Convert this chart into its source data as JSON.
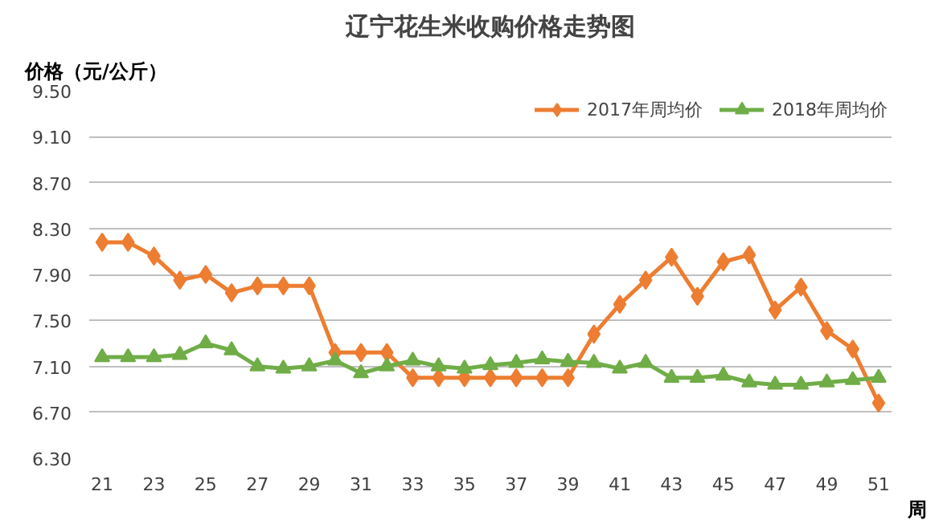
{
  "chart_data": {
    "type": "line",
    "title": "辽宁花生米收购价格走势图",
    "xlabel": "周",
    "ylabel": "价格（元/公斤）",
    "x": [
      21,
      22,
      23,
      24,
      25,
      26,
      27,
      28,
      29,
      30,
      31,
      32,
      33,
      34,
      35,
      36,
      37,
      38,
      39,
      40,
      41,
      42,
      43,
      44,
      45,
      46,
      47,
      48,
      49,
      50,
      51
    ],
    "series": [
      {
        "name": "2017年周均价",
        "color": "#ed7d31",
        "marker": "diamond",
        "values": [
          8.18,
          8.18,
          8.06,
          7.85,
          7.9,
          7.74,
          7.8,
          7.8,
          7.8,
          7.22,
          7.22,
          7.22,
          7.0,
          7.0,
          7.0,
          7.0,
          7.0,
          7.0,
          7.0,
          7.38,
          7.64,
          7.85,
          8.05,
          7.71,
          8.01,
          8.07,
          7.59,
          7.79,
          7.41,
          7.25,
          6.78
        ]
      },
      {
        "name": "2018年周均价",
        "color": "#70ad47",
        "marker": "triangle",
        "values": [
          7.18,
          7.18,
          7.18,
          7.2,
          7.3,
          7.24,
          7.1,
          7.08,
          7.1,
          7.15,
          7.04,
          7.1,
          7.15,
          7.1,
          7.08,
          7.11,
          7.13,
          7.16,
          7.14,
          7.13,
          7.08,
          7.13,
          7.0,
          7.0,
          7.02,
          6.96,
          6.94,
          6.94,
          6.96,
          6.98,
          7.0
        ]
      }
    ],
    "xlim": [
      20.5,
      51.5
    ],
    "xticks": [
      21,
      23,
      25,
      27,
      29,
      31,
      33,
      35,
      37,
      39,
      41,
      43,
      45,
      47,
      49,
      51
    ],
    "ylim": [
      6.3,
      9.5
    ],
    "yticks": [
      {
        "value": 6.3,
        "label": "6.30"
      },
      {
        "value": 6.7,
        "label": "6.70"
      },
      {
        "value": 7.1,
        "label": "7.10"
      },
      {
        "value": 7.5,
        "label": "7.50"
      },
      {
        "value": 7.9,
        "label": "7.90"
      },
      {
        "value": 8.3,
        "label": "8.30"
      },
      {
        "value": 8.7,
        "label": "8.70"
      },
      {
        "value": 9.1,
        "label": "9.10"
      },
      {
        "value": 9.5,
        "label": "9.50"
      }
    ],
    "grid": "y",
    "legend": "top right",
    "line_style": "solid"
  }
}
